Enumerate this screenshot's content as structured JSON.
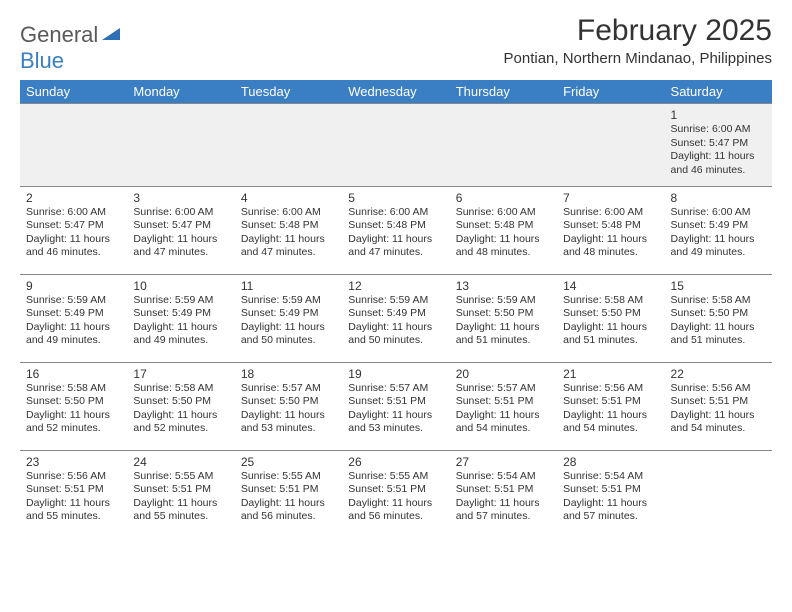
{
  "brand": {
    "text1": "General",
    "text2": "Blue",
    "tri_color": "#2e6fb5"
  },
  "title": "February 2025",
  "location": "Pontian, Northern Mindanao, Philippines",
  "colors": {
    "header_bg": "#3a7fc4",
    "header_fg": "#ffffff",
    "week1_bg": "#f0f0f0",
    "border": "#888888",
    "text": "#333333"
  },
  "days_of_week": [
    "Sunday",
    "Monday",
    "Tuesday",
    "Wednesday",
    "Thursday",
    "Friday",
    "Saturday"
  ],
  "weeks": [
    [
      null,
      null,
      null,
      null,
      null,
      null,
      {
        "n": "1",
        "sr": "6:00 AM",
        "ss": "5:47 PM",
        "dl": "11 hours and 46 minutes."
      }
    ],
    [
      {
        "n": "2",
        "sr": "6:00 AM",
        "ss": "5:47 PM",
        "dl": "11 hours and 46 minutes."
      },
      {
        "n": "3",
        "sr": "6:00 AM",
        "ss": "5:47 PM",
        "dl": "11 hours and 47 minutes."
      },
      {
        "n": "4",
        "sr": "6:00 AM",
        "ss": "5:48 PM",
        "dl": "11 hours and 47 minutes."
      },
      {
        "n": "5",
        "sr": "6:00 AM",
        "ss": "5:48 PM",
        "dl": "11 hours and 47 minutes."
      },
      {
        "n": "6",
        "sr": "6:00 AM",
        "ss": "5:48 PM",
        "dl": "11 hours and 48 minutes."
      },
      {
        "n": "7",
        "sr": "6:00 AM",
        "ss": "5:48 PM",
        "dl": "11 hours and 48 minutes."
      },
      {
        "n": "8",
        "sr": "6:00 AM",
        "ss": "5:49 PM",
        "dl": "11 hours and 49 minutes."
      }
    ],
    [
      {
        "n": "9",
        "sr": "5:59 AM",
        "ss": "5:49 PM",
        "dl": "11 hours and 49 minutes."
      },
      {
        "n": "10",
        "sr": "5:59 AM",
        "ss": "5:49 PM",
        "dl": "11 hours and 49 minutes."
      },
      {
        "n": "11",
        "sr": "5:59 AM",
        "ss": "5:49 PM",
        "dl": "11 hours and 50 minutes."
      },
      {
        "n": "12",
        "sr": "5:59 AM",
        "ss": "5:49 PM",
        "dl": "11 hours and 50 minutes."
      },
      {
        "n": "13",
        "sr": "5:59 AM",
        "ss": "5:50 PM",
        "dl": "11 hours and 51 minutes."
      },
      {
        "n": "14",
        "sr": "5:58 AM",
        "ss": "5:50 PM",
        "dl": "11 hours and 51 minutes."
      },
      {
        "n": "15",
        "sr": "5:58 AM",
        "ss": "5:50 PM",
        "dl": "11 hours and 51 minutes."
      }
    ],
    [
      {
        "n": "16",
        "sr": "5:58 AM",
        "ss": "5:50 PM",
        "dl": "11 hours and 52 minutes."
      },
      {
        "n": "17",
        "sr": "5:58 AM",
        "ss": "5:50 PM",
        "dl": "11 hours and 52 minutes."
      },
      {
        "n": "18",
        "sr": "5:57 AM",
        "ss": "5:50 PM",
        "dl": "11 hours and 53 minutes."
      },
      {
        "n": "19",
        "sr": "5:57 AM",
        "ss": "5:51 PM",
        "dl": "11 hours and 53 minutes."
      },
      {
        "n": "20",
        "sr": "5:57 AM",
        "ss": "5:51 PM",
        "dl": "11 hours and 54 minutes."
      },
      {
        "n": "21",
        "sr": "5:56 AM",
        "ss": "5:51 PM",
        "dl": "11 hours and 54 minutes."
      },
      {
        "n": "22",
        "sr": "5:56 AM",
        "ss": "5:51 PM",
        "dl": "11 hours and 54 minutes."
      }
    ],
    [
      {
        "n": "23",
        "sr": "5:56 AM",
        "ss": "5:51 PM",
        "dl": "11 hours and 55 minutes."
      },
      {
        "n": "24",
        "sr": "5:55 AM",
        "ss": "5:51 PM",
        "dl": "11 hours and 55 minutes."
      },
      {
        "n": "25",
        "sr": "5:55 AM",
        "ss": "5:51 PM",
        "dl": "11 hours and 56 minutes."
      },
      {
        "n": "26",
        "sr": "5:55 AM",
        "ss": "5:51 PM",
        "dl": "11 hours and 56 minutes."
      },
      {
        "n": "27",
        "sr": "5:54 AM",
        "ss": "5:51 PM",
        "dl": "11 hours and 57 minutes."
      },
      {
        "n": "28",
        "sr": "5:54 AM",
        "ss": "5:51 PM",
        "dl": "11 hours and 57 minutes."
      },
      null
    ]
  ],
  "labels": {
    "sunrise": "Sunrise:",
    "sunset": "Sunset:",
    "daylight": "Daylight:"
  }
}
